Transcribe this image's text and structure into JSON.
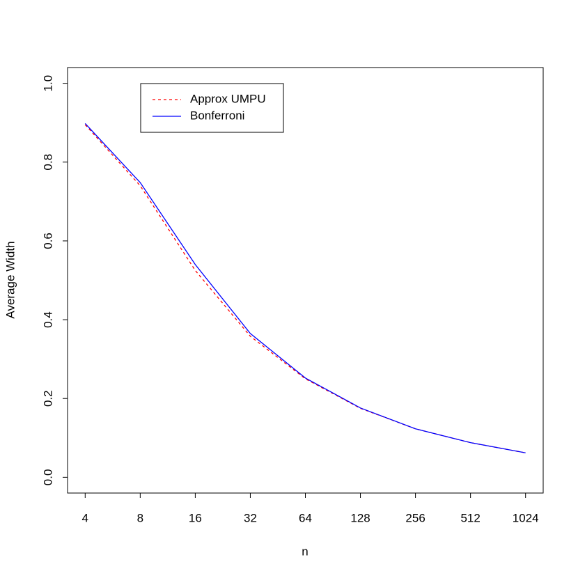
{
  "chart_data": {
    "type": "line",
    "x_label": "n",
    "y_label": "Average Width",
    "categories": [
      "4",
      "8",
      "16",
      "32",
      "64",
      "128",
      "256",
      "512",
      "1024"
    ],
    "series": [
      {
        "name": "Approx UMPU",
        "color": "#ff0000",
        "linestyle": "dashed",
        "values": [
          0.895,
          0.74,
          0.525,
          0.358,
          0.25,
          0.175,
          0.123,
          0.088,
          0.062
        ]
      },
      {
        "name": "Bonferroni",
        "color": "#0000ff",
        "linestyle": "solid",
        "values": [
          0.898,
          0.748,
          0.54,
          0.365,
          0.252,
          0.176,
          0.123,
          0.088,
          0.062
        ]
      }
    ],
    "ylim": [
      -0.04,
      1.04
    ],
    "yticks": [
      {
        "value": 0,
        "label": "0.0"
      },
      0.2,
      0.4,
      0.6,
      0.8,
      {
        "value": 1,
        "label": "1.0"
      }
    ],
    "legend": "top-left"
  }
}
